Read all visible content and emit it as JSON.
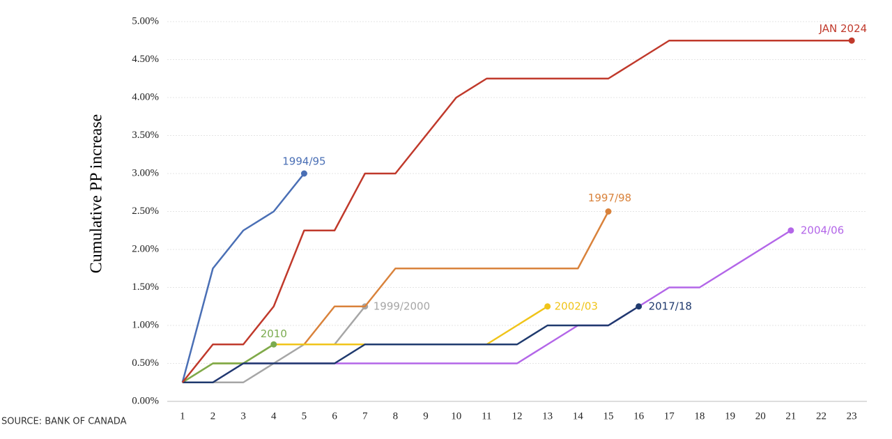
{
  "chart_data": {
    "type": "line",
    "y_label": "Cumulative PP increase",
    "source": "SOURCE: BANK OF CANADA",
    "x": [
      1,
      2,
      3,
      4,
      5,
      6,
      7,
      8,
      9,
      10,
      11,
      12,
      13,
      14,
      15,
      16,
      17,
      18,
      19,
      20,
      21,
      22,
      23
    ],
    "xlim": [
      0.5,
      23.5
    ],
    "xticks": [
      1,
      2,
      3,
      4,
      5,
      6,
      7,
      8,
      9,
      10,
      11,
      12,
      13,
      14,
      15,
      16,
      17,
      18,
      19,
      20,
      21,
      22,
      23
    ],
    "ylim": [
      0,
      5
    ],
    "yticks": [
      {
        "value": 0,
        "label": "0.00%"
      },
      {
        "value": 0.5,
        "label": "0.50%"
      },
      {
        "value": 1,
        "label": "1.00%"
      },
      {
        "value": 1.5,
        "label": "1.50%"
      },
      {
        "value": 2,
        "label": "2.00%"
      },
      {
        "value": 2.5,
        "label": "2.50%"
      },
      {
        "value": 3,
        "label": "3.00%"
      },
      {
        "value": 3.5,
        "label": "3.50%"
      },
      {
        "value": 4,
        "label": "4.00%"
      },
      {
        "value": 4.5,
        "label": "4.50%"
      },
      {
        "value": 5,
        "label": "5.00%"
      }
    ],
    "grid": true,
    "series": [
      {
        "name": "2004/06",
        "color": "#b366e8",
        "values": [
          0.25,
          0.25,
          0.5,
          0.5,
          0.5,
          0.5,
          0.5,
          0.5,
          0.5,
          0.5,
          0.5,
          0.5,
          0.75,
          1.0,
          1.0,
          1.25,
          1.5,
          1.5,
          1.75,
          2.0,
          2.25,
          null,
          null
        ]
      },
      {
        "name": "1999/2000",
        "color": "#a6a6a6",
        "values": [
          0.25,
          0.25,
          0.25,
          0.5,
          0.75,
          0.75,
          1.25,
          null,
          null,
          null,
          null,
          null,
          null,
          null,
          null,
          null,
          null,
          null,
          null,
          null,
          null,
          null,
          null
        ]
      },
      {
        "name": "1997/98",
        "color": "#d9823b",
        "values": [
          0.25,
          0.5,
          0.5,
          0.75,
          0.75,
          1.25,
          1.25,
          1.75,
          1.75,
          1.75,
          1.75,
          1.75,
          1.75,
          1.75,
          2.5,
          null,
          null,
          null,
          null,
          null,
          null,
          null,
          null
        ]
      },
      {
        "name": "2002/03",
        "color": "#f0c419",
        "values": [
          0.25,
          0.5,
          0.5,
          0.75,
          0.75,
          0.75,
          0.75,
          0.75,
          0.75,
          0.75,
          0.75,
          1.0,
          1.25,
          null,
          null,
          null,
          null,
          null,
          null,
          null,
          null,
          null,
          null
        ]
      },
      {
        "name": "2010",
        "color": "#7aab4f",
        "values": [
          0.25,
          0.5,
          0.5,
          0.75,
          null,
          null,
          null,
          null,
          null,
          null,
          null,
          null,
          null,
          null,
          null,
          null,
          null,
          null,
          null,
          null,
          null,
          null,
          null
        ]
      },
      {
        "name": "2017/18",
        "color": "#1f3a6e",
        "values": [
          0.25,
          0.25,
          0.5,
          0.5,
          0.5,
          0.5,
          0.75,
          0.75,
          0.75,
          0.75,
          0.75,
          0.75,
          1.0,
          1.0,
          1.0,
          1.25,
          null,
          null,
          null,
          null,
          null,
          null,
          null
        ]
      },
      {
        "name": "1994/95",
        "color": "#4a6fb5",
        "values": [
          0.25,
          1.75,
          2.25,
          2.5,
          3.0,
          null,
          null,
          null,
          null,
          null,
          null,
          null,
          null,
          null,
          null,
          null,
          null,
          null,
          null,
          null,
          null,
          null,
          null
        ]
      },
      {
        "name": "JAN 2024",
        "color": "#c0392b",
        "values": [
          0.25,
          0.75,
          0.75,
          1.25,
          2.25,
          2.25,
          3.0,
          3.0,
          3.5,
          4.0,
          4.25,
          4.25,
          4.25,
          4.25,
          4.25,
          4.5,
          4.75,
          4.75,
          4.75,
          4.75,
          4.75,
          4.75,
          4.75
        ]
      }
    ]
  }
}
